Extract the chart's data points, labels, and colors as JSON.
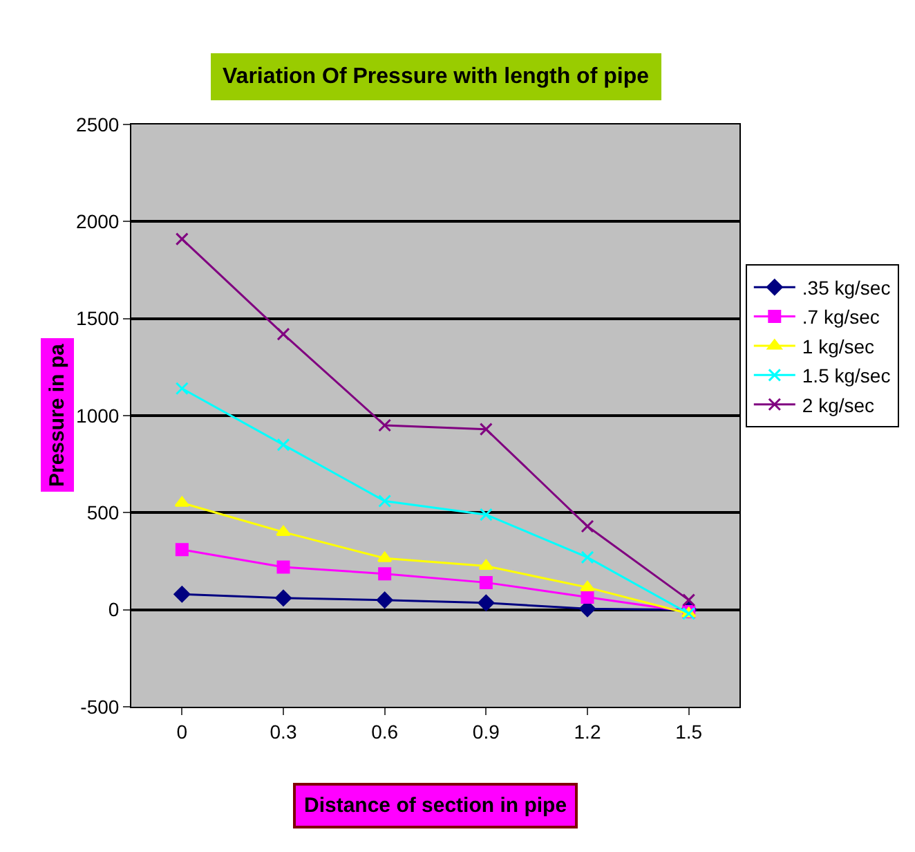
{
  "chart_data": {
    "type": "line",
    "title": "Variation Of Pressure with length of pipe",
    "xlabel": "Distance of section in pipe",
    "ylabel": "Pressure in pa",
    "categories": [
      "0",
      "0.3",
      "0.6",
      "0.9",
      "1.2",
      "1.5"
    ],
    "series": [
      {
        "name": ".35 kg/sec",
        "color": "#000080",
        "marker": "diamond",
        "values": [
          80,
          60,
          50,
          35,
          5,
          0
        ]
      },
      {
        "name": ".7 kg/sec",
        "color": "#ff00ff",
        "marker": "square",
        "values": [
          310,
          220,
          185,
          140,
          65,
          -10
        ]
      },
      {
        "name": "1 kg/sec",
        "color": "#ffff00",
        "marker": "triangle",
        "values": [
          550,
          400,
          265,
          225,
          115,
          -20
        ]
      },
      {
        "name": "1.5 kg/sec",
        "color": "#00ffff",
        "marker": "cross",
        "values": [
          1140,
          850,
          560,
          490,
          270,
          -20
        ]
      },
      {
        "name": "2 kg/sec",
        "color": "#800080",
        "marker": "cross",
        "values": [
          1910,
          1420,
          950,
          930,
          430,
          50
        ]
      }
    ],
    "ylim": [
      -500,
      2500
    ],
    "yticks": [
      -500,
      0,
      500,
      1000,
      1500,
      2000,
      2500
    ],
    "grid": "y",
    "legend": "right"
  }
}
